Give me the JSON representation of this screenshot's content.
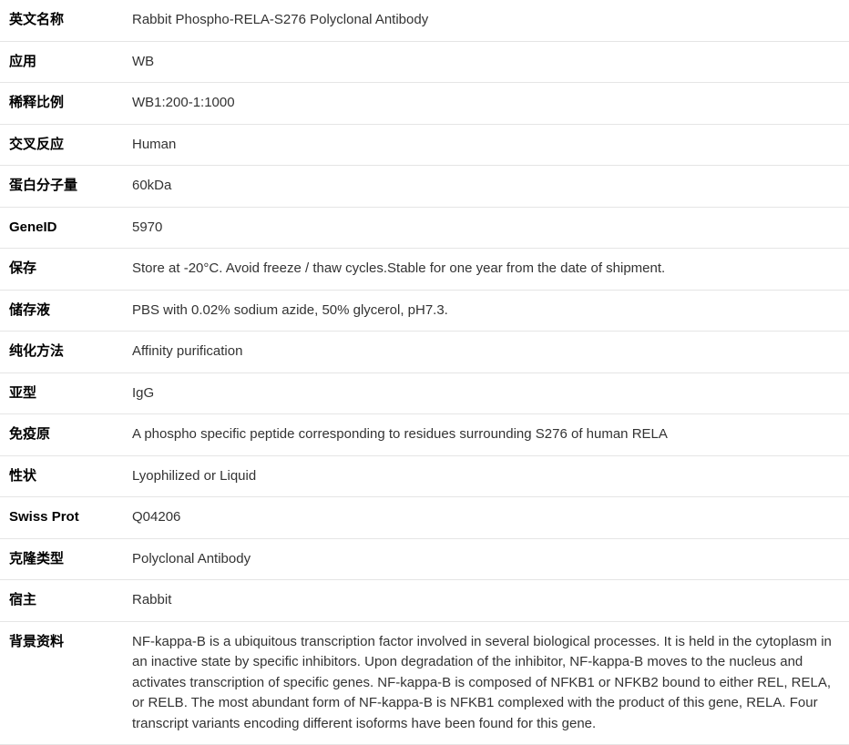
{
  "rows": [
    {
      "label": "英文名称",
      "value": "Rabbit Phospho-RELA-S276 Polyclonal Antibody"
    },
    {
      "label": "应用",
      "value": "WB"
    },
    {
      "label": "稀释比例",
      "value": "WB1:200-1:1000"
    },
    {
      "label": "交叉反应",
      "value": "Human"
    },
    {
      "label": "蛋白分子量",
      "value": "60kDa"
    },
    {
      "label": "GeneID",
      "value": "5970"
    },
    {
      "label": "保存",
      "value": "Store at -20°C. Avoid freeze / thaw cycles.Stable for one year from the date of shipment."
    },
    {
      "label": "储存液",
      "value": "PBS with 0.02% sodium azide, 50% glycerol, pH7.3."
    },
    {
      "label": "纯化方法",
      "value": "Affinity purification"
    },
    {
      "label": "亚型",
      "value": "IgG"
    },
    {
      "label": "免疫原",
      "value": "A phospho specific peptide corresponding to residues surrounding S276 of human RELA"
    },
    {
      "label": "性状",
      "value": "Lyophilized or Liquid"
    },
    {
      "label": "Swiss Prot",
      "value": "Q04206"
    },
    {
      "label": "克隆类型",
      "value": "Polyclonal Antibody"
    },
    {
      "label": "宿主",
      "value": "Rabbit"
    },
    {
      "label": "背景资料",
      "value": "NF-kappa-B is a ubiquitous transcription factor involved in several biological processes. It is held in the cytoplasm in an inactive state by specific inhibitors. Upon degradation of the inhibitor, NF-kappa-B moves to the nucleus and activates transcription of specific genes. NF-kappa-B is composed of NFKB1 or NFKB2 bound to either REL, RELA, or RELB. The most abundant form of NF-kappa-B is NFKB1 complexed with the product of this gene, RELA. Four transcript variants encoding different isoforms have been found for this gene."
    }
  ]
}
